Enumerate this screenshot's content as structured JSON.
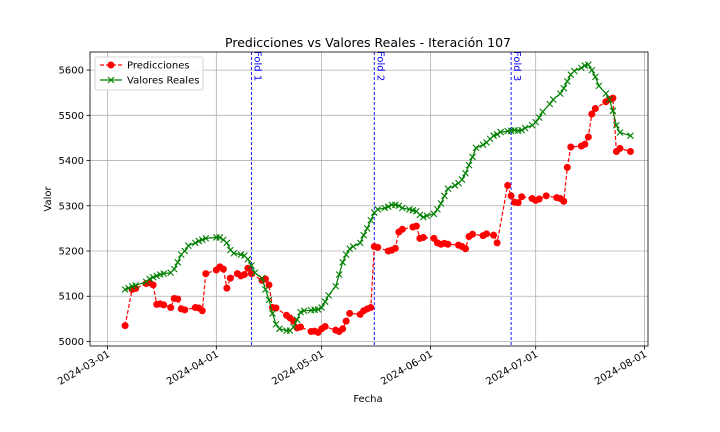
{
  "chart_data": {
    "type": "line",
    "title": "Predicciones vs Valores Reales - Iteración 107",
    "xlabel": "Fecha",
    "ylabel": "Valor",
    "grid": true,
    "legend_position": "top-left",
    "xlim": [
      "2024-02-25",
      "2024-08-02"
    ],
    "ylim": [
      4990,
      5640
    ],
    "x_ticks": [
      "2024-03-01",
      "2024-04-01",
      "2024-05-01",
      "2024-06-01",
      "2024-07-01",
      "2024-08-01"
    ],
    "y_ticks": [
      5000,
      5100,
      5200,
      5300,
      5400,
      5500,
      5600
    ],
    "vlines": [
      {
        "date": "2024-04-11",
        "label": "Fold 1"
      },
      {
        "date": "2024-05-16",
        "label": "Fold 2"
      },
      {
        "date": "2024-06-24",
        "label": "Fold 3"
      }
    ],
    "series": [
      {
        "name": "Predicciones",
        "color": "#ff0000",
        "marker": "circle",
        "style": "dashed",
        "points": [
          [
            "2024-03-06",
            5035
          ],
          [
            "2024-03-08",
            5115
          ],
          [
            "2024-03-09",
            5117
          ],
          [
            "2024-03-12",
            5128
          ],
          [
            "2024-03-13",
            5130
          ],
          [
            "2024-03-14",
            5125
          ],
          [
            "2024-03-15",
            5082
          ],
          [
            "2024-03-16",
            5083
          ],
          [
            "2024-03-17",
            5081
          ],
          [
            "2024-03-19",
            5075
          ],
          [
            "2024-03-20",
            5095
          ],
          [
            "2024-03-21",
            5094
          ],
          [
            "2024-03-22",
            5072
          ],
          [
            "2024-03-23",
            5070
          ],
          [
            "2024-03-26",
            5075
          ],
          [
            "2024-03-27",
            5074
          ],
          [
            "2024-03-28",
            5068
          ],
          [
            "2024-03-29",
            5150
          ],
          [
            "2024-04-01",
            5158
          ],
          [
            "2024-04-02",
            5165
          ],
          [
            "2024-04-03",
            5160
          ],
          [
            "2024-04-04",
            5118
          ],
          [
            "2024-04-05",
            5140
          ],
          [
            "2024-04-07",
            5150
          ],
          [
            "2024-04-08",
            5145
          ],
          [
            "2024-04-09",
            5148
          ],
          [
            "2024-04-10",
            5162
          ],
          [
            "2024-04-11",
            5150
          ],
          [
            "2024-04-14",
            5135
          ],
          [
            "2024-04-15",
            5138
          ],
          [
            "2024-04-16",
            5125
          ],
          [
            "2024-04-17",
            5075
          ],
          [
            "2024-04-18",
            5074
          ],
          [
            "2024-04-21",
            5058
          ],
          [
            "2024-04-22",
            5052
          ],
          [
            "2024-04-23",
            5045
          ],
          [
            "2024-04-24",
            5030
          ],
          [
            "2024-04-25",
            5032
          ],
          [
            "2024-04-28",
            5022
          ],
          [
            "2024-04-29",
            5023
          ],
          [
            "2024-04-30",
            5020
          ],
          [
            "2024-05-01",
            5028
          ],
          [
            "2024-05-02",
            5033
          ],
          [
            "2024-05-05",
            5025
          ],
          [
            "2024-05-06",
            5022
          ],
          [
            "2024-05-07",
            5028
          ],
          [
            "2024-05-08",
            5045
          ],
          [
            "2024-05-09",
            5062
          ],
          [
            "2024-05-12",
            5060
          ],
          [
            "2024-05-13",
            5068
          ],
          [
            "2024-05-14",
            5072
          ],
          [
            "2024-05-15",
            5075
          ],
          [
            "2024-05-16",
            5210
          ],
          [
            "2024-05-17",
            5208
          ],
          [
            "2024-05-20",
            5200
          ],
          [
            "2024-05-21",
            5202
          ],
          [
            "2024-05-22",
            5206
          ],
          [
            "2024-05-23",
            5242
          ],
          [
            "2024-05-24",
            5248
          ],
          [
            "2024-05-27",
            5253
          ],
          [
            "2024-05-28",
            5255
          ],
          [
            "2024-05-29",
            5228
          ],
          [
            "2024-05-30",
            5230
          ],
          [
            "2024-06-02",
            5228
          ],
          [
            "2024-06-03",
            5218
          ],
          [
            "2024-06-04",
            5215
          ],
          [
            "2024-06-05",
            5217
          ],
          [
            "2024-06-06",
            5215
          ],
          [
            "2024-06-09",
            5213
          ],
          [
            "2024-06-10",
            5210
          ],
          [
            "2024-06-11",
            5205
          ],
          [
            "2024-06-12",
            5232
          ],
          [
            "2024-06-13",
            5237
          ],
          [
            "2024-06-16",
            5234
          ],
          [
            "2024-06-17",
            5238
          ],
          [
            "2024-06-19",
            5235
          ],
          [
            "2024-06-20",
            5218
          ],
          [
            "2024-06-23",
            5345
          ],
          [
            "2024-06-24",
            5322
          ],
          [
            "2024-06-25",
            5308
          ],
          [
            "2024-06-26",
            5307
          ],
          [
            "2024-06-27",
            5320
          ],
          [
            "2024-06-30",
            5316
          ],
          [
            "2024-07-01",
            5312
          ],
          [
            "2024-07-02",
            5315
          ],
          [
            "2024-07-04",
            5322
          ],
          [
            "2024-07-07",
            5318
          ],
          [
            "2024-07-08",
            5316
          ],
          [
            "2024-07-09",
            5310
          ],
          [
            "2024-07-10",
            5385
          ],
          [
            "2024-07-11",
            5430
          ],
          [
            "2024-07-14",
            5432
          ],
          [
            "2024-07-15",
            5436
          ],
          [
            "2024-07-16",
            5452
          ],
          [
            "2024-07-17",
            5503
          ],
          [
            "2024-07-18",
            5515
          ],
          [
            "2024-07-21",
            5530
          ],
          [
            "2024-07-22",
            5535
          ],
          [
            "2024-07-23",
            5538
          ],
          [
            "2024-07-24",
            5420
          ],
          [
            "2024-07-25",
            5427
          ],
          [
            "2024-07-28",
            5420
          ]
        ]
      },
      {
        "name": "Valores Reales",
        "color": "#008000",
        "marker": "x",
        "style": "solid",
        "points": [
          [
            "2024-03-06",
            5115
          ],
          [
            "2024-03-07",
            5118
          ],
          [
            "2024-03-08",
            5122
          ],
          [
            "2024-03-09",
            5124
          ],
          [
            "2024-03-12",
            5132
          ],
          [
            "2024-03-13",
            5138
          ],
          [
            "2024-03-14",
            5142
          ],
          [
            "2024-03-15",
            5145
          ],
          [
            "2024-03-16",
            5148
          ],
          [
            "2024-03-17",
            5150
          ],
          [
            "2024-03-19",
            5152
          ],
          [
            "2024-03-20",
            5160
          ],
          [
            "2024-03-21",
            5175
          ],
          [
            "2024-03-22",
            5192
          ],
          [
            "2024-03-23",
            5200
          ],
          [
            "2024-03-24",
            5212
          ],
          [
            "2024-03-26",
            5218
          ],
          [
            "2024-03-27",
            5222
          ],
          [
            "2024-03-28",
            5225
          ],
          [
            "2024-03-29",
            5228
          ],
          [
            "2024-04-01",
            5230
          ],
          [
            "2024-04-02",
            5230
          ],
          [
            "2024-04-03",
            5225
          ],
          [
            "2024-04-04",
            5218
          ],
          [
            "2024-04-05",
            5202
          ],
          [
            "2024-04-06",
            5195
          ],
          [
            "2024-04-08",
            5192
          ],
          [
            "2024-04-09",
            5190
          ],
          [
            "2024-04-10",
            5182
          ],
          [
            "2024-04-11",
            5168
          ],
          [
            "2024-04-12",
            5152
          ],
          [
            "2024-04-14",
            5140
          ],
          [
            "2024-04-15",
            5115
          ],
          [
            "2024-04-16",
            5092
          ],
          [
            "2024-04-17",
            5062
          ],
          [
            "2024-04-18",
            5038
          ],
          [
            "2024-04-19",
            5028
          ],
          [
            "2024-04-21",
            5024
          ],
          [
            "2024-04-22",
            5024
          ],
          [
            "2024-04-23",
            5032
          ],
          [
            "2024-04-24",
            5048
          ],
          [
            "2024-04-25",
            5065
          ],
          [
            "2024-04-26",
            5068
          ],
          [
            "2024-04-28",
            5069
          ],
          [
            "2024-04-29",
            5070
          ],
          [
            "2024-04-30",
            5071
          ],
          [
            "2024-05-01",
            5075
          ],
          [
            "2024-05-02",
            5088
          ],
          [
            "2024-05-03",
            5102
          ],
          [
            "2024-05-05",
            5122
          ],
          [
            "2024-05-06",
            5148
          ],
          [
            "2024-05-07",
            5175
          ],
          [
            "2024-05-08",
            5192
          ],
          [
            "2024-05-09",
            5205
          ],
          [
            "2024-05-10",
            5210
          ],
          [
            "2024-05-12",
            5218
          ],
          [
            "2024-05-13",
            5235
          ],
          [
            "2024-05-14",
            5250
          ],
          [
            "2024-05-15",
            5268
          ],
          [
            "2024-05-16",
            5285
          ],
          [
            "2024-05-17",
            5292
          ],
          [
            "2024-05-19",
            5295
          ],
          [
            "2024-05-20",
            5298
          ],
          [
            "2024-05-21",
            5302
          ],
          [
            "2024-05-22",
            5302
          ],
          [
            "2024-05-23",
            5300
          ],
          [
            "2024-05-24",
            5295
          ],
          [
            "2024-05-26",
            5292
          ],
          [
            "2024-05-27",
            5290
          ],
          [
            "2024-05-28",
            5288
          ],
          [
            "2024-05-29",
            5280
          ],
          [
            "2024-05-30",
            5275
          ],
          [
            "2024-05-31",
            5278
          ],
          [
            "2024-06-02",
            5282
          ],
          [
            "2024-06-03",
            5292
          ],
          [
            "2024-06-04",
            5305
          ],
          [
            "2024-06-05",
            5322
          ],
          [
            "2024-06-06",
            5338
          ],
          [
            "2024-06-08",
            5345
          ],
          [
            "2024-06-09",
            5350
          ],
          [
            "2024-06-10",
            5358
          ],
          [
            "2024-06-11",
            5372
          ],
          [
            "2024-06-12",
            5390
          ],
          [
            "2024-06-13",
            5408
          ],
          [
            "2024-06-14",
            5428
          ],
          [
            "2024-06-16",
            5435
          ],
          [
            "2024-06-17",
            5440
          ],
          [
            "2024-06-18",
            5448
          ],
          [
            "2024-06-19",
            5455
          ],
          [
            "2024-06-20",
            5458
          ],
          [
            "2024-06-21",
            5463
          ],
          [
            "2024-06-23",
            5465
          ],
          [
            "2024-06-24",
            5466
          ],
          [
            "2024-06-25",
            5467
          ],
          [
            "2024-06-26",
            5466
          ],
          [
            "2024-06-27",
            5467
          ],
          [
            "2024-06-28",
            5472
          ],
          [
            "2024-06-30",
            5478
          ],
          [
            "2024-07-01",
            5485
          ],
          [
            "2024-07-02",
            5495
          ],
          [
            "2024-07-03",
            5508
          ],
          [
            "2024-07-05",
            5525
          ],
          [
            "2024-07-06",
            5535
          ],
          [
            "2024-07-08",
            5548
          ],
          [
            "2024-07-09",
            5560
          ],
          [
            "2024-07-10",
            5575
          ],
          [
            "2024-07-11",
            5590
          ],
          [
            "2024-07-12",
            5598
          ],
          [
            "2024-07-14",
            5605
          ],
          [
            "2024-07-15",
            5610
          ],
          [
            "2024-07-16",
            5612
          ],
          [
            "2024-07-17",
            5600
          ],
          [
            "2024-07-18",
            5585
          ],
          [
            "2024-07-19",
            5565
          ],
          [
            "2024-07-21",
            5548
          ],
          [
            "2024-07-22",
            5535
          ],
          [
            "2024-07-23",
            5510
          ],
          [
            "2024-07-24",
            5478
          ],
          [
            "2024-07-25",
            5462
          ],
          [
            "2024-07-28",
            5455
          ]
        ]
      }
    ]
  }
}
